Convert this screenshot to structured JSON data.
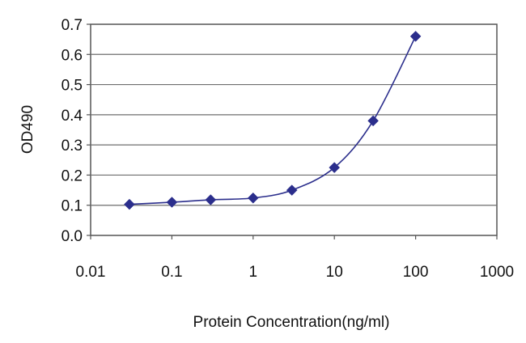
{
  "chart_data": {
    "type": "line",
    "title": "",
    "xlabel": "Protein Concentration(ng/ml)",
    "ylabel": "OD490",
    "x_scale": "log",
    "xlim": [
      0.01,
      1000
    ],
    "ylim": [
      0.0,
      0.7
    ],
    "x_ticks": [
      "0.01",
      "0.1",
      "1",
      "10",
      "100",
      "1000"
    ],
    "y_ticks": [
      "0.0",
      "0.1",
      "0.2",
      "0.3",
      "0.4",
      "0.5",
      "0.6",
      "0.7"
    ],
    "grid": "horizontal",
    "legend": "none",
    "series": [
      {
        "color": "#2b2e8c",
        "marker": "diamond",
        "points": [
          {
            "x": 0.03,
            "y": 0.103
          },
          {
            "x": 0.1,
            "y": 0.11
          },
          {
            "x": 0.3,
            "y": 0.118
          },
          {
            "x": 1,
            "y": 0.124
          },
          {
            "x": 3,
            "y": 0.15
          },
          {
            "x": 10,
            "y": 0.225
          },
          {
            "x": 30,
            "y": 0.38
          },
          {
            "x": 100,
            "y": 0.66
          }
        ]
      }
    ]
  }
}
